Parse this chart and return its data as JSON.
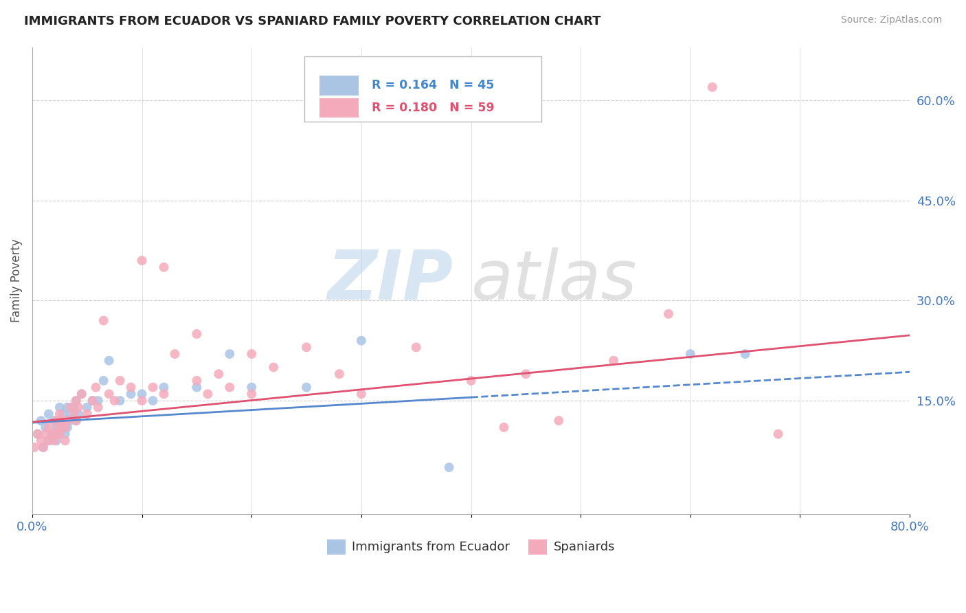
{
  "title": "IMMIGRANTS FROM ECUADOR VS SPANIARD FAMILY POVERTY CORRELATION CHART",
  "source_text": "Source: ZipAtlas.com",
  "ylabel": "Family Poverty",
  "xlim": [
    0.0,
    0.8
  ],
  "ylim": [
    -0.02,
    0.68
  ],
  "xticks": [
    0.0,
    0.1,
    0.2,
    0.3,
    0.4,
    0.5,
    0.6,
    0.7,
    0.8
  ],
  "yticks_right": [
    0.15,
    0.3,
    0.45,
    0.6
  ],
  "ytick_labels_right": [
    "15.0%",
    "30.0%",
    "45.0%",
    "60.0%"
  ],
  "background_color": "#ffffff",
  "grid_color": "#cccccc",
  "ecuador_color": "#aac4e4",
  "spaniard_color": "#f4aabb",
  "ecuador_line_color": "#5588cc",
  "spaniard_line_color": "#e05070",
  "R_ecuador": 0.164,
  "N_ecuador": 45,
  "R_spaniard": 0.18,
  "N_spaniard": 59,
  "ecuador_scatter_x": [
    0.005,
    0.008,
    0.01,
    0.012,
    0.015,
    0.015,
    0.018,
    0.02,
    0.02,
    0.022,
    0.022,
    0.024,
    0.025,
    0.025,
    0.028,
    0.028,
    0.03,
    0.03,
    0.032,
    0.032,
    0.034,
    0.035,
    0.038,
    0.04,
    0.04,
    0.042,
    0.045,
    0.05,
    0.055,
    0.06,
    0.065,
    0.07,
    0.08,
    0.09,
    0.1,
    0.11,
    0.12,
    0.15,
    0.18,
    0.2,
    0.25,
    0.3,
    0.38,
    0.6,
    0.65
  ],
  "ecuador_scatter_y": [
    0.1,
    0.12,
    0.08,
    0.11,
    0.09,
    0.13,
    0.1,
    0.1,
    0.12,
    0.09,
    0.11,
    0.1,
    0.12,
    0.14,
    0.11,
    0.13,
    0.1,
    0.12,
    0.11,
    0.14,
    0.12,
    0.13,
    0.14,
    0.12,
    0.15,
    0.13,
    0.16,
    0.14,
    0.15,
    0.15,
    0.18,
    0.21,
    0.15,
    0.16,
    0.16,
    0.15,
    0.17,
    0.17,
    0.22,
    0.17,
    0.17,
    0.24,
    0.05,
    0.22,
    0.22
  ],
  "spaniard_scatter_x": [
    0.002,
    0.005,
    0.008,
    0.01,
    0.012,
    0.015,
    0.015,
    0.018,
    0.02,
    0.022,
    0.022,
    0.024,
    0.025,
    0.025,
    0.028,
    0.03,
    0.03,
    0.032,
    0.035,
    0.038,
    0.04,
    0.04,
    0.042,
    0.045,
    0.05,
    0.055,
    0.058,
    0.06,
    0.065,
    0.07,
    0.075,
    0.08,
    0.09,
    0.1,
    0.11,
    0.12,
    0.13,
    0.15,
    0.16,
    0.17,
    0.18,
    0.2,
    0.22,
    0.25,
    0.28,
    0.3,
    0.35,
    0.4,
    0.43,
    0.45,
    0.48,
    0.53,
    0.58,
    0.62,
    0.68,
    0.1,
    0.12,
    0.15,
    0.2
  ],
  "spaniard_scatter_y": [
    0.08,
    0.1,
    0.09,
    0.08,
    0.1,
    0.09,
    0.11,
    0.1,
    0.09,
    0.1,
    0.12,
    0.11,
    0.13,
    0.1,
    0.12,
    0.09,
    0.11,
    0.12,
    0.14,
    0.13,
    0.12,
    0.15,
    0.14,
    0.16,
    0.13,
    0.15,
    0.17,
    0.14,
    0.27,
    0.16,
    0.15,
    0.18,
    0.17,
    0.15,
    0.17,
    0.16,
    0.22,
    0.18,
    0.16,
    0.19,
    0.17,
    0.16,
    0.2,
    0.23,
    0.19,
    0.16,
    0.23,
    0.18,
    0.11,
    0.19,
    0.12,
    0.21,
    0.28,
    0.62,
    0.1,
    0.36,
    0.35,
    0.25,
    0.22
  ],
  "ecuador_trend_x_start": 0.0,
  "ecuador_trend_x_solid_end": 0.4,
  "ecuador_trend_x_end": 0.8,
  "ecuador_trend_y_start": 0.117,
  "ecuador_trend_y_solid_end": 0.155,
  "ecuador_trend_y_end": 0.193,
  "spaniard_trend_x_start": 0.0,
  "spaniard_trend_x_end": 0.8,
  "spaniard_trend_y_start": 0.118,
  "spaniard_trend_y_end": 0.248
}
